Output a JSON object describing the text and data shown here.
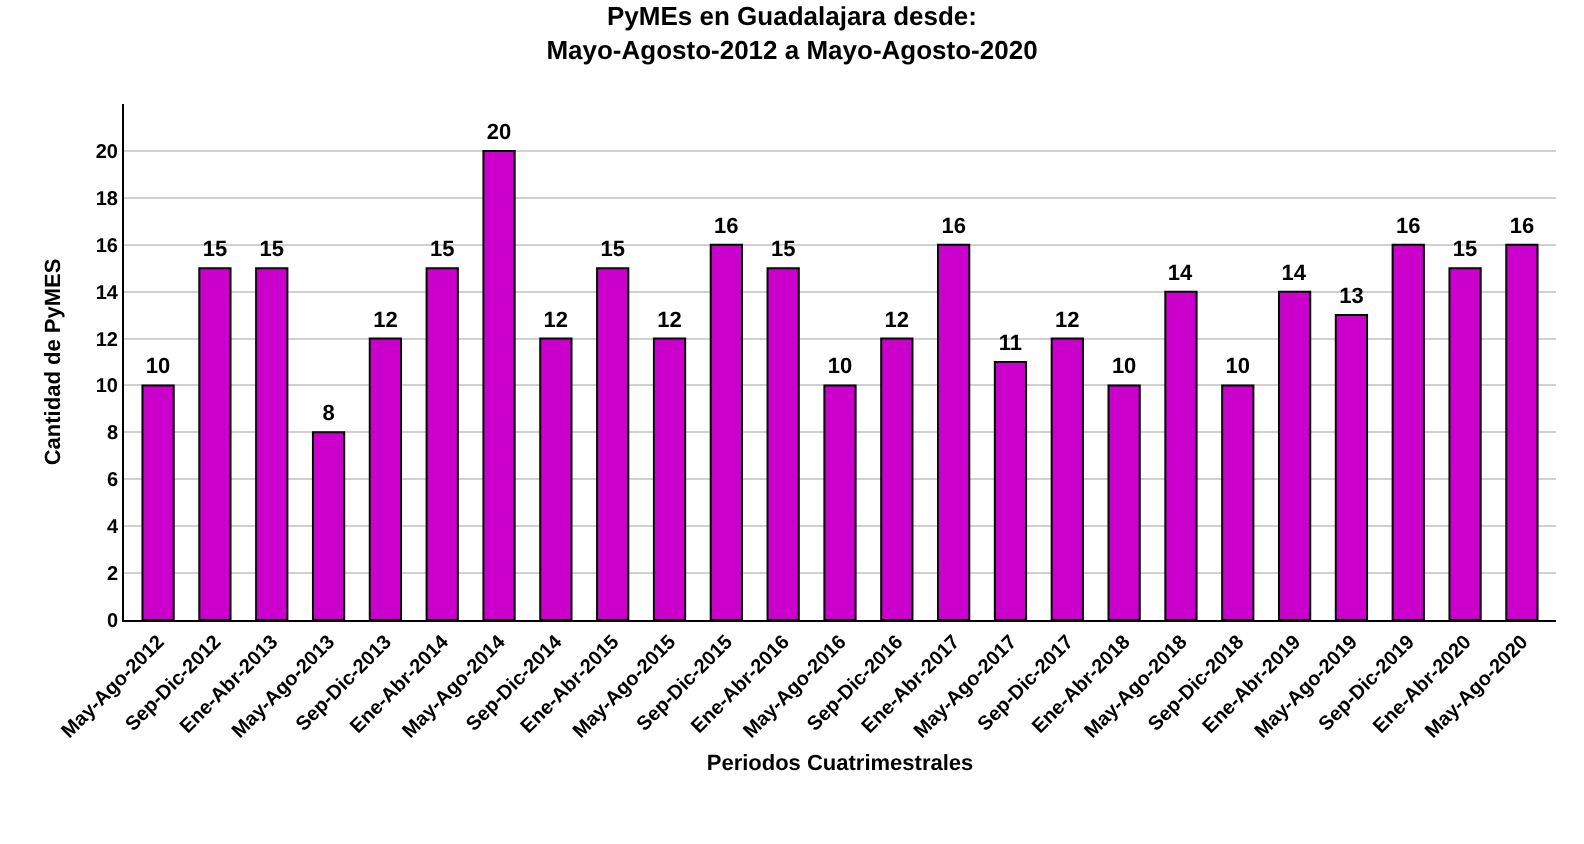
{
  "chart_data": {
    "type": "bar",
    "title": "PyMEs en Guadalajara desde:\nMayo-Agosto-2012 a Mayo-Agosto-2020",
    "xlabel": "Periodos Cuatrimestrales",
    "ylabel": "Cantidad de PyMES",
    "categories": [
      "May-Ago-2012",
      "Sep-Dic-2012",
      "Ene-Abr-2013",
      "May-Ago-2013",
      "Sep-Dic-2013",
      "Ene-Abr-2014",
      "May-Ago-2014",
      "Sep-Dic-2014",
      "Ene-Abr-2015",
      "May-Ago-2015",
      "Sep-Dic-2015",
      "Ene-Abr-2016",
      "May-Ago-2016",
      "Sep-Dic-2016",
      "Ene-Abr-2017",
      "May-Ago-2017",
      "Sep-Dic-2017",
      "Ene-Abr-2018",
      "May-Ago-2018",
      "Sep-Dic-2018",
      "Ene-Abr-2019",
      "May-Ago-2019",
      "Sep-Dic-2019",
      "Ene-Abr-2020",
      "May-Ago-2020"
    ],
    "values": [
      10,
      15,
      15,
      8,
      12,
      15,
      20,
      12,
      15,
      12,
      16,
      15,
      10,
      12,
      16,
      11,
      12,
      10,
      14,
      10,
      14,
      13,
      16,
      15,
      16
    ],
    "color": "#cc00cc",
    "ylim": [
      0,
      22
    ],
    "yticks": [
      0,
      2,
      4,
      6,
      8,
      10,
      12,
      14,
      16,
      18,
      20
    ],
    "grid": "y",
    "data_labels": true
  }
}
